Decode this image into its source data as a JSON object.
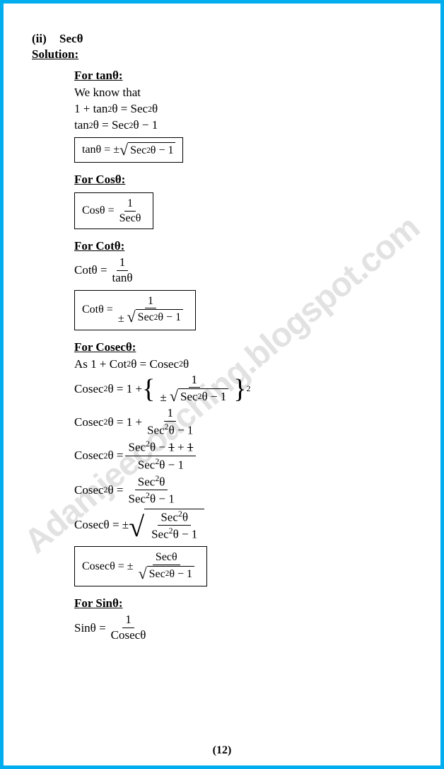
{
  "watermark": "Adamjeecoaching.blogspot.com",
  "part": {
    "num": "(ii)",
    "label": "Secθ"
  },
  "solution_label": "Solution:",
  "tan": {
    "heading": "For tanθ:",
    "l1": "We know that",
    "l2_lhs": "1 + tan",
    "l2_sup": "2",
    "l2_mid": "θ = Sec",
    "l2_sup2": "2",
    "l2_rhs": "θ",
    "l3_lhs": "tan",
    "l3_sup": "2",
    "l3_mid": "θ = Sec",
    "l3_sup2": "2",
    "l3_rhs": "θ − 1",
    "box_lhs": "tanθ  = ± ",
    "box_rad_a": "Sec",
    "box_rad_sup": "2",
    "box_rad_b": "θ − 1"
  },
  "cos": {
    "heading": "For Cosθ:",
    "box_lhs": "Cosθ = ",
    "num": "1",
    "den": "Secθ"
  },
  "cot": {
    "heading": "For Cotθ:",
    "l1_lhs": "Cotθ = ",
    "l1_num": "1",
    "l1_den": "tanθ",
    "box_lhs": "Cotθ = ",
    "box_num": "1",
    "box_den_pre": "± ",
    "box_rad_a": "Sec",
    "box_rad_sup": "2",
    "box_rad_b": "θ − 1"
  },
  "cosec": {
    "heading": "For Cosecθ:",
    "l1_a": "As 1 + Cot",
    "l1_sup": "2",
    "l1_b": "θ = Cosec",
    "l1_sup2": "2",
    "l1_c": "θ",
    "l2_lhs_a": "Cosec",
    "l2_sup": "2",
    "l2_lhs_b": "θ = 1 + ",
    "l2_num": "1",
    "l2_den_pre": "± ",
    "l2_rad_a": "Sec",
    "l2_rad_sup": "2",
    "l2_rad_b": "θ − 1",
    "l2_exp": "2",
    "l3_lhs_a": "Cosec",
    "l3_sup": "2",
    "l3_lhs_b": "θ = 1 + ",
    "l3_num": "1",
    "l3_den_a": "Sec",
    "l3_den_sup": "2",
    "l3_den_b": "θ − 1",
    "l4_lhs_a": "Cosec",
    "l4_sup": "2",
    "l4_lhs_b": "θ = ",
    "l4_num_a": "Sec",
    "l4_num_sup": "2",
    "l4_num_b": "θ − ",
    "l4_s1": "1",
    "l4_plus": " + ",
    "l4_s2": "1",
    "l4_den_a": "Sec",
    "l4_den_sup": "2",
    "l4_den_b": "θ − 1",
    "l5_lhs_a": "Cosec",
    "l5_sup": "2",
    "l5_lhs_b": "θ = ",
    "l5_num_a": "Sec",
    "l5_num_sup": "2",
    "l5_num_b": "θ",
    "l5_den_a": "Sec",
    "l5_den_sup": "2",
    "l5_den_b": "θ − 1",
    "l6_lhs": "Cosecθ  = ± ",
    "l6_num_a": "Sec",
    "l6_num_sup": "2",
    "l6_num_b": "θ",
    "l6_den_a": "Sec",
    "l6_den_sup": "2",
    "l6_den_b": "θ − 1",
    "box_lhs": "Cosecθ  = ±  ",
    "box_num": "Secθ",
    "box_rad_a": "Sec",
    "box_rad_sup": "2",
    "box_rad_b": "θ − 1"
  },
  "sin": {
    "heading": "For Sinθ:",
    "l1_lhs": "Sinθ = ",
    "l1_num": "1",
    "l1_den": "Cosecθ"
  },
  "pagenum": "(12)",
  "style": {
    "border_color": "#00aeef",
    "text_color": "#000000",
    "watermark_color": "rgba(140,140,140,0.25)",
    "font_family": "Times New Roman",
    "base_fontsize_pt": 13
  }
}
